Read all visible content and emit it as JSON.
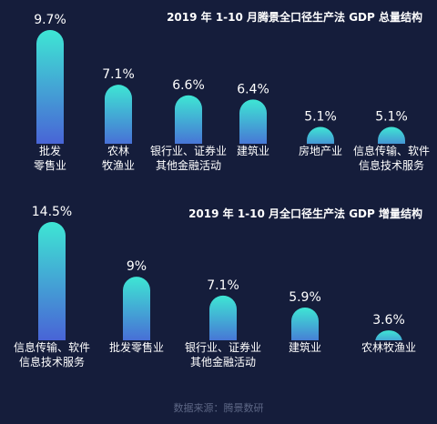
{
  "chart_data": [
    {
      "type": "bar",
      "title": "2019 年 1-10 月腾景全口径生产法 GDP 总量结构",
      "categories": [
        [
          "批发",
          "零售业"
        ],
        [
          "农林",
          "牧渔业"
        ],
        [
          "银行业、证券业",
          "其他金融活动"
        ],
        [
          "建筑业"
        ],
        [
          "房地产业"
        ],
        [
          "信息传输、软件",
          "信息技术服务"
        ]
      ],
      "values": [
        9.7,
        7.1,
        6.6,
        6.4,
        5.1,
        5.1
      ],
      "value_labels": [
        "9.7%",
        "7.1%",
        "6.6%",
        "6.4%",
        "5.1%",
        "5.1%"
      ],
      "unit": "%",
      "ylim": [
        4.3,
        9.7
      ]
    },
    {
      "type": "bar",
      "title": "2019 年 1-10 月全口径生产法 GDP 增量结构",
      "categories": [
        [
          "信息传输、软件",
          "信息技术服务"
        ],
        [
          "批发零售业"
        ],
        [
          "银行业、证券业",
          "其他金融活动"
        ],
        [
          "建筑业"
        ],
        [
          "农林牧渔业"
        ]
      ],
      "values": [
        14.5,
        9,
        7.1,
        5.9,
        3.6
      ],
      "value_labels": [
        "14.5%",
        "9%",
        "7.1%",
        "5.9%",
        "3.6%"
      ],
      "unit": "%",
      "ylim": [
        2.6,
        14.5
      ]
    }
  ],
  "source": "数据来源：腾景数研",
  "colors": {
    "background": "#151d3b",
    "bar_top": "#3ee6d4",
    "bar_bottom": "#4a55d6",
    "source_text": "#5d6785"
  }
}
